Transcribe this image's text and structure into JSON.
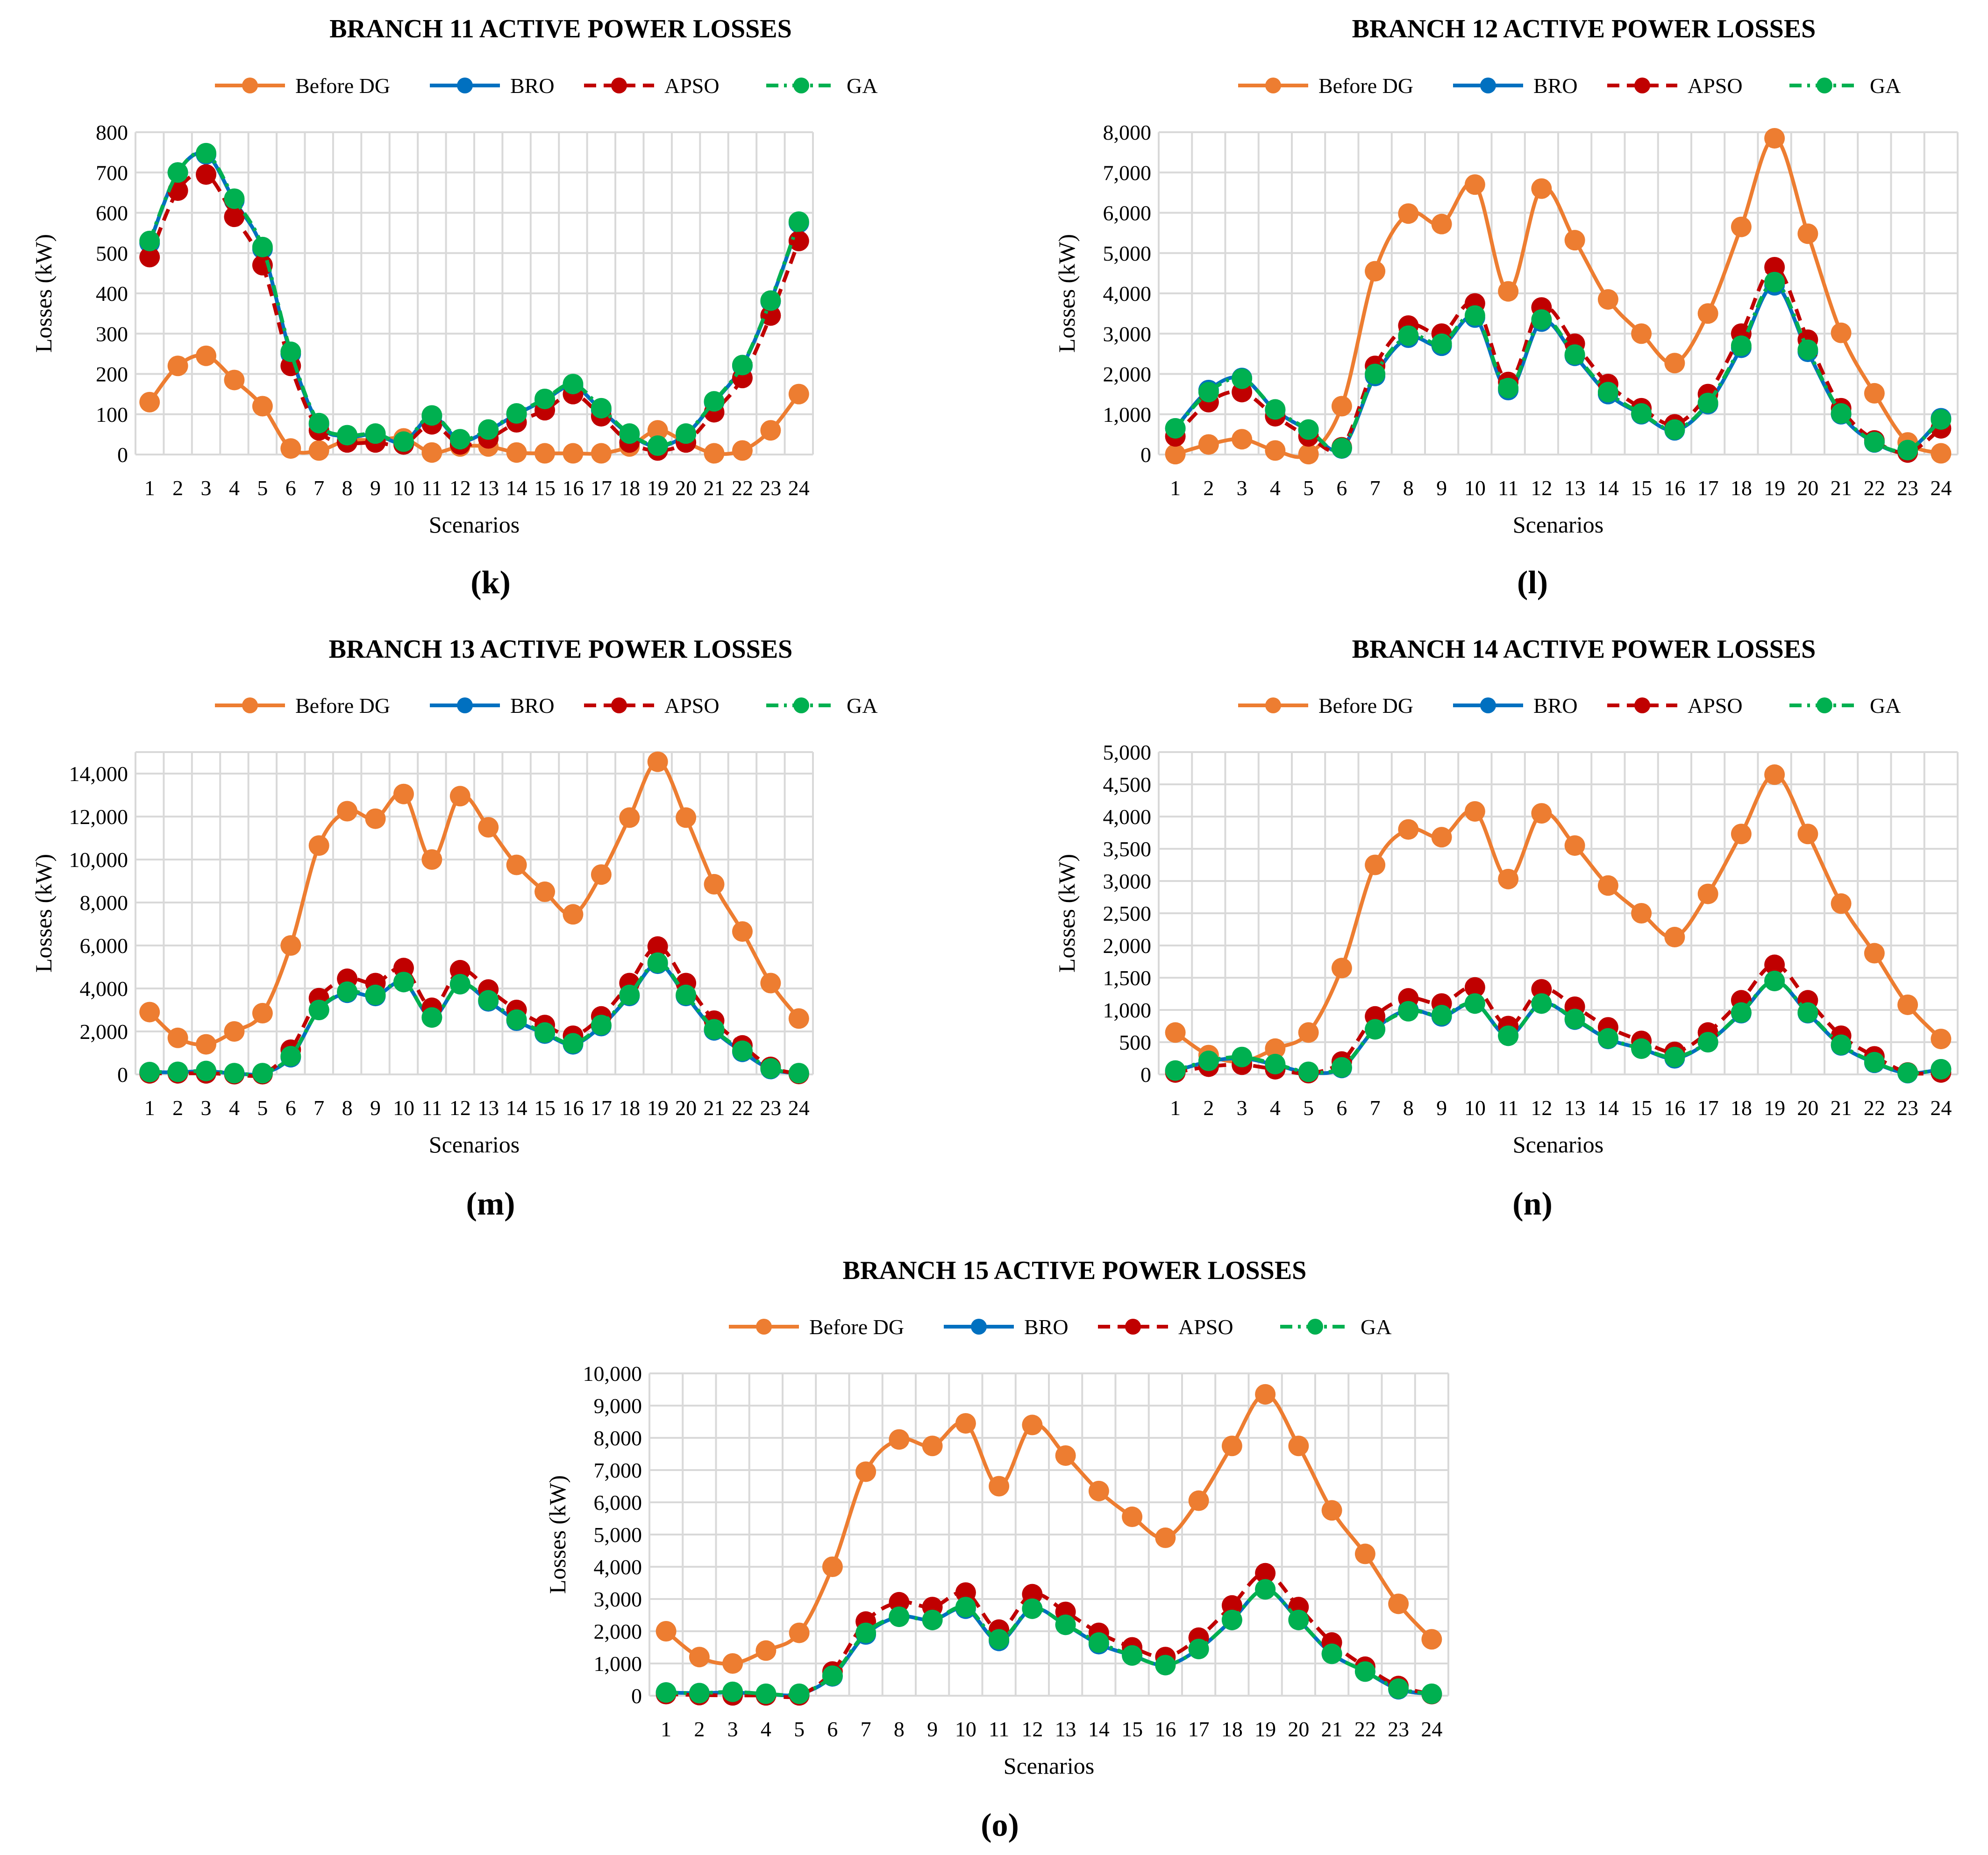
{
  "figure": {
    "legend_entries": [
      "Before DG",
      "BRO",
      "APSO",
      "GA"
    ],
    "series_styles": [
      {
        "name": "Before DG",
        "color": "#ED7D31",
        "dash": "solid"
      },
      {
        "name": "BRO",
        "color": "#0070C0",
        "dash": "solid"
      },
      {
        "name": "APSO",
        "color": "#C00000",
        "dash": "dash"
      },
      {
        "name": "GA",
        "color": "#00B050",
        "dash": "dashdot"
      }
    ]
  },
  "chart_data": [
    {
      "type": "line",
      "panel_label": "(k)",
      "title": "BRANCH 11 ACTIVE POWER LOSSES",
      "xlabel": "Scenarios",
      "ylabel": "Losses (kW)",
      "ylim": [
        0,
        800
      ],
      "yticks": [
        0,
        100,
        200,
        300,
        400,
        500,
        600,
        700,
        800
      ],
      "ytick_labels": [
        "0",
        "100",
        "200",
        "300",
        "400",
        "500",
        "600",
        "700",
        "800"
      ],
      "categories": [
        "1",
        "2",
        "3",
        "4",
        "5",
        "6",
        "7",
        "8",
        "9",
        "10",
        "11",
        "12",
        "13",
        "14",
        "15",
        "16",
        "17",
        "18",
        "19",
        "20",
        "21",
        "22",
        "23",
        "24"
      ],
      "series": [
        {
          "name": "Before DG",
          "values": [
            130,
            220,
            245,
            185,
            120,
            15,
            10,
            35,
            35,
            40,
            5,
            20,
            20,
            5,
            3,
            3,
            3,
            20,
            60,
            30,
            3,
            10,
            60,
            150
          ]
        },
        {
          "name": "BRO",
          "values": [
            525,
            700,
            745,
            630,
            510,
            250,
            75,
            45,
            50,
            30,
            95,
            35,
            60,
            100,
            135,
            170,
            110,
            50,
            20,
            50,
            130,
            220,
            380,
            575
          ]
        },
        {
          "name": "APSO",
          "values": [
            490,
            655,
            695,
            590,
            470,
            220,
            60,
            30,
            30,
            25,
            75,
            25,
            40,
            80,
            110,
            150,
            95,
            30,
            10,
            30,
            105,
            190,
            345,
            530
          ]
        },
        {
          "name": "GA",
          "values": [
            530,
            700,
            748,
            635,
            515,
            255,
            78,
            48,
            52,
            32,
            97,
            38,
            62,
            102,
            138,
            175,
            115,
            52,
            22,
            52,
            132,
            222,
            382,
            578
          ]
        }
      ]
    },
    {
      "type": "line",
      "panel_label": "(l)",
      "title": "BRANCH 12 ACTIVE POWER LOSSES",
      "xlabel": "Scenarios",
      "ylabel": "Losses (kW)",
      "ylim": [
        0,
        8000
      ],
      "yticks": [
        0,
        1000,
        2000,
        3000,
        4000,
        5000,
        6000,
        7000,
        8000
      ],
      "ytick_labels": [
        "0",
        "1,000",
        "2,000",
        "3,000",
        "4,000",
        "5,000",
        "6,000",
        "7,000",
        "8,000"
      ],
      "categories": [
        "1",
        "2",
        "3",
        "4",
        "5",
        "6",
        "7",
        "8",
        "9",
        "10",
        "11",
        "12",
        "13",
        "14",
        "15",
        "16",
        "17",
        "18",
        "19",
        "20",
        "21",
        "22",
        "23",
        "24"
      ],
      "series": [
        {
          "name": "Before DG",
          "values": [
            10,
            250,
            380,
            100,
            10,
            1200,
            4550,
            5980,
            5720,
            6700,
            4050,
            6600,
            5320,
            3850,
            3000,
            2270,
            3500,
            5650,
            7850,
            5480,
            3020,
            1520,
            300,
            30
          ]
        },
        {
          "name": "BRO",
          "values": [
            650,
            1600,
            1900,
            1100,
            600,
            150,
            1950,
            2900,
            2700,
            3400,
            1600,
            3300,
            2450,
            1500,
            1000,
            600,
            1250,
            2650,
            4200,
            2550,
            1000,
            300,
            100,
            900
          ]
        },
        {
          "name": "APSO",
          "values": [
            450,
            1300,
            1550,
            950,
            450,
            180,
            2200,
            3200,
            3000,
            3750,
            1800,
            3650,
            2750,
            1750,
            1150,
            750,
            1500,
            3000,
            4650,
            2850,
            1150,
            350,
            50,
            650
          ]
        },
        {
          "name": "GA",
          "values": [
            650,
            1550,
            1880,
            1120,
            620,
            160,
            2000,
            2950,
            2750,
            3450,
            1650,
            3350,
            2480,
            1550,
            1020,
            620,
            1280,
            2700,
            4280,
            2600,
            1020,
            310,
            110,
            870
          ]
        }
      ]
    },
    {
      "type": "line",
      "panel_label": "(m)",
      "title": "BRANCH 13 ACTIVE POWER LOSSES",
      "xlabel": "Scenarios",
      "ylabel": "Losses (kW)",
      "ylim": [
        0,
        15000
      ],
      "yticks": [
        0,
        2000,
        4000,
        6000,
        8000,
        10000,
        12000,
        14000
      ],
      "ytick_labels": [
        "0",
        "2,000",
        "4,000",
        "6,000",
        "8,000",
        "10,000",
        "12,000",
        "14,000"
      ],
      "categories": [
        "1",
        "2",
        "3",
        "4",
        "5",
        "6",
        "7",
        "8",
        "9",
        "10",
        "11",
        "12",
        "13",
        "14",
        "15",
        "16",
        "17",
        "18",
        "19",
        "20",
        "21",
        "22",
        "23",
        "24"
      ],
      "series": [
        {
          "name": "Before DG",
          "values": [
            2900,
            1700,
            1400,
            2000,
            2850,
            6000,
            10650,
            12250,
            11900,
            13050,
            10000,
            12950,
            11500,
            9750,
            8500,
            7450,
            9300,
            11950,
            14550,
            11950,
            8850,
            6650,
            4250,
            2600
          ]
        },
        {
          "name": "BRO",
          "values": [
            100,
            100,
            150,
            50,
            50,
            800,
            3000,
            3800,
            3650,
            4300,
            2650,
            4200,
            3400,
            2500,
            1900,
            1400,
            2250,
            3650,
            5150,
            3650,
            2050,
            1050,
            250,
            50
          ]
        },
        {
          "name": "APSO",
          "values": [
            50,
            50,
            50,
            10,
            10,
            1150,
            3550,
            4450,
            4250,
            4950,
            3100,
            4850,
            3950,
            3000,
            2300,
            1800,
            2700,
            4250,
            5950,
            4250,
            2500,
            1350,
            350,
            20
          ]
        },
        {
          "name": "GA",
          "values": [
            110,
            120,
            160,
            60,
            60,
            850,
            3000,
            3850,
            3700,
            4300,
            2650,
            4200,
            3450,
            2550,
            1950,
            1450,
            2300,
            3700,
            5200,
            3700,
            2100,
            1100,
            280,
            60
          ]
        }
      ]
    },
    {
      "type": "line",
      "panel_label": "(n)",
      "title": "BRANCH 14 ACTIVE POWER LOSSES",
      "xlabel": "Scenarios",
      "ylabel": "Losses (kW)",
      "ylim": [
        0,
        5000
      ],
      "yticks": [
        0,
        500,
        1000,
        1500,
        2000,
        2500,
        3000,
        3500,
        4000,
        4500,
        5000
      ],
      "ytick_labels": [
        "0",
        "500",
        "1,000",
        "1,500",
        "2,000",
        "2,500",
        "3,000",
        "3,500",
        "4,000",
        "4,500",
        "5,000"
      ],
      "categories": [
        "1",
        "2",
        "3",
        "4",
        "5",
        "6",
        "7",
        "8",
        "9",
        "10",
        "11",
        "12",
        "13",
        "14",
        "15",
        "16",
        "17",
        "18",
        "19",
        "20",
        "21",
        "22",
        "23",
        "24"
      ],
      "series": [
        {
          "name": "Before DG",
          "values": [
            650,
            300,
            200,
            400,
            650,
            1650,
            3250,
            3800,
            3680,
            4080,
            3030,
            4050,
            3550,
            2930,
            2500,
            2130,
            2800,
            3730,
            4650,
            3730,
            2650,
            1880,
            1080,
            550
          ]
        },
        {
          "name": "BRO",
          "values": [
            50,
            200,
            250,
            150,
            30,
            100,
            700,
            1000,
            900,
            1100,
            600,
            1100,
            850,
            550,
            400,
            250,
            500,
            950,
            1450,
            950,
            450,
            180,
            20,
            80
          ]
        },
        {
          "name": "APSO",
          "values": [
            30,
            120,
            150,
            80,
            20,
            200,
            900,
            1180,
            1100,
            1350,
            750,
            1320,
            1050,
            730,
            520,
            350,
            650,
            1150,
            1700,
            1150,
            600,
            280,
            30,
            30
          ]
        },
        {
          "name": "GA",
          "values": [
            60,
            210,
            270,
            160,
            40,
            110,
            700,
            980,
            920,
            1100,
            600,
            1100,
            860,
            560,
            400,
            270,
            500,
            960,
            1450,
            960,
            460,
            190,
            25,
            80
          ]
        }
      ]
    },
    {
      "type": "line",
      "panel_label": "(o)",
      "title": "BRANCH 15 ACTIVE POWER LOSSES",
      "xlabel": "Scenarios",
      "ylabel": "Losses (kW)",
      "ylim": [
        0,
        10000
      ],
      "yticks": [
        0,
        1000,
        2000,
        3000,
        4000,
        5000,
        6000,
        7000,
        8000,
        9000,
        10000
      ],
      "ytick_labels": [
        "0",
        "1,000",
        "2,000",
        "3,000",
        "4,000",
        "5,000",
        "6,000",
        "7,000",
        "8,000",
        "9,000",
        "10,000"
      ],
      "categories": [
        "1",
        "2",
        "3",
        "4",
        "5",
        "6",
        "7",
        "8",
        "9",
        "10",
        "11",
        "12",
        "13",
        "14",
        "15",
        "16",
        "17",
        "18",
        "19",
        "20",
        "21",
        "22",
        "23",
        "24"
      ],
      "series": [
        {
          "name": "Before DG",
          "values": [
            2000,
            1200,
            1000,
            1400,
            1950,
            4000,
            6950,
            7950,
            7750,
            8450,
            6500,
            8400,
            7450,
            6350,
            5550,
            4900,
            6050,
            7750,
            9350,
            7750,
            5750,
            4400,
            2850,
            1750
          ]
        },
        {
          "name": "BRO",
          "values": [
            100,
            80,
            100,
            50,
            50,
            600,
            1900,
            2450,
            2350,
            2700,
            1700,
            2700,
            2200,
            1600,
            1250,
            950,
            1450,
            2350,
            3300,
            2350,
            1300,
            750,
            200,
            50
          ]
        },
        {
          "name": "APSO",
          "values": [
            50,
            20,
            10,
            10,
            10,
            750,
            2300,
            2900,
            2750,
            3200,
            2050,
            3150,
            2600,
            1950,
            1500,
            1200,
            1800,
            2800,
            3800,
            2750,
            1650,
            900,
            300,
            50
          ]
        },
        {
          "name": "GA",
          "values": [
            100,
            80,
            120,
            60,
            60,
            620,
            1950,
            2450,
            2350,
            2750,
            1750,
            2700,
            2200,
            1650,
            1250,
            950,
            1450,
            2350,
            3300,
            2350,
            1300,
            750,
            220,
            60
          ]
        }
      ]
    }
  ]
}
